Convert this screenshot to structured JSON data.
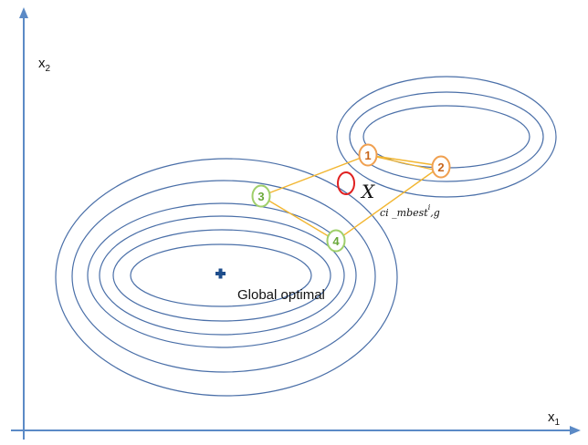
{
  "axes": {
    "x_label": "x",
    "x_sub": "1",
    "y_label": "x",
    "y_sub": "2",
    "color": "#5b8ac6"
  },
  "contour_color": "#4a6fa8",
  "optimum": {
    "label": "Global optimal",
    "marker_color": "#1f4e8c"
  },
  "path_color": "#f2b631",
  "nodes": [
    {
      "label": "1",
      "color": "#f0a050",
      "text_color": "#c8661c"
    },
    {
      "label": "2",
      "color": "#f0a050",
      "text_color": "#c8661c"
    },
    {
      "label": "3",
      "color": "#9fcf6a",
      "text_color": "#6aa83a"
    },
    {
      "label": "4",
      "color": "#9fcf6a",
      "text_color": "#6aa83a"
    }
  ],
  "candidate": {
    "symbol": "X",
    "subscript": "ci _mbest",
    "superscript": "i",
    "subscript_tail": ",g",
    "color": "#e02020"
  }
}
